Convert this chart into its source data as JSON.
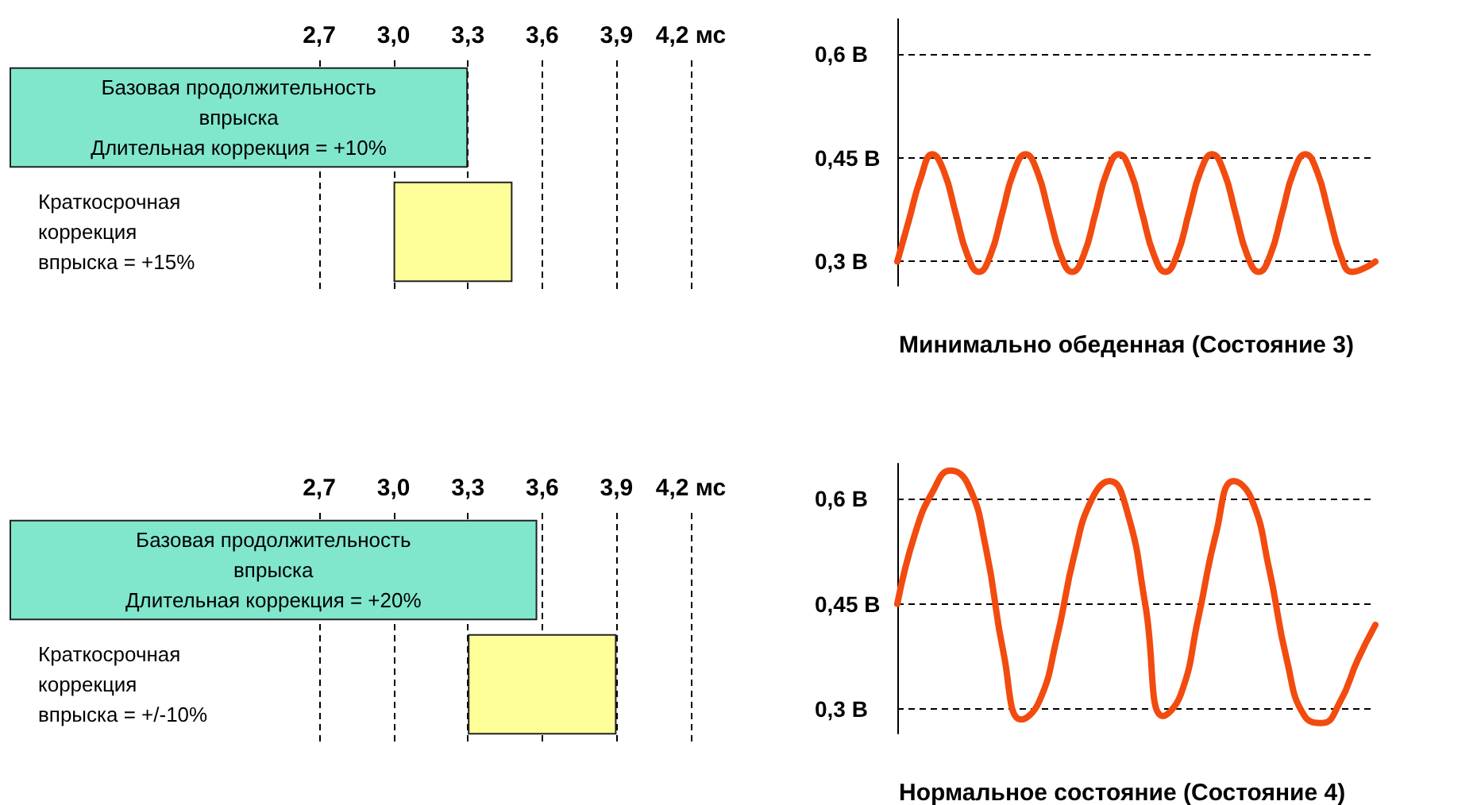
{
  "chart_data": [
    {
      "type": "bar",
      "orientation": "horizontal",
      "categories": [
        "Базовая продолжительность\nвпрыска\nДлительная коррекция = +10%",
        "Краткосрочная\nкоррекция\nвпрыска = +15%"
      ],
      "base": [
        1.45,
        3.0
      ],
      "values": [
        1.85,
        0.48
      ],
      "colors": [
        "#80e6cc",
        "#ffff99"
      ],
      "xlim": [
        1.45,
        4.2
      ],
      "xticks": [
        {
          "value": 2.7,
          "label": "2,7"
        },
        {
          "value": 3.0,
          "label": "3,0"
        },
        {
          "value": 3.3,
          "label": "3,3"
        },
        {
          "value": 3.6,
          "label": "3,6"
        },
        {
          "value": 3.9,
          "label": "3,9"
        },
        {
          "value": 4.2,
          "label": "4,2 мс"
        }
      ],
      "grid": "x",
      "tick_labels": "x"
    },
    {
      "type": "line",
      "categories": [
        null,
        null,
        null,
        null,
        null,
        null,
        null,
        null,
        null,
        null,
        null,
        null,
        null,
        null,
        null,
        null,
        null,
        null,
        null,
        null,
        null,
        null,
        null,
        null,
        null,
        null,
        null,
        null,
        null,
        null,
        null,
        null,
        null,
        null,
        null,
        null,
        null,
        null,
        null,
        null,
        null,
        null
      ],
      "series": [
        {
          "color": "#f24b0f",
          "values": [
            0.3,
            0.36,
            0.42,
            0.455,
            0.43,
            0.37,
            0.31,
            0.285,
            0.31,
            0.37,
            0.43,
            0.455,
            0.43,
            0.37,
            0.31,
            0.285,
            0.31,
            0.37,
            0.43,
            0.455,
            0.43,
            0.37,
            0.31,
            0.285,
            0.31,
            0.37,
            0.43,
            0.455,
            0.43,
            0.37,
            0.31,
            0.285,
            0.31,
            0.37,
            0.43,
            0.455,
            0.43,
            0.37,
            0.31,
            0.285,
            0.29,
            0.3
          ]
        }
      ],
      "ylim": [
        0.265,
        0.65
      ],
      "yticks": [
        {
          "value": 0.3,
          "label": "0,3 В"
        },
        {
          "value": 0.45,
          "label": "0,45 В"
        },
        {
          "value": 0.6,
          "label": "0,6 В"
        }
      ],
      "grid": "y",
      "xlabel": "Минимально обеденная (Состояние 3)",
      "tick_labels": "y",
      "marker": "none"
    },
    {
      "type": "bar",
      "orientation": "horizontal",
      "categories": [
        "Базовая продолжительность\nвпрыска\nДлительная коррекция = +20%",
        "Краткосрочная\nкоррекция\nвпрыска = +/-10%"
      ],
      "base": [
        1.45,
        3.3
      ],
      "values": [
        2.13,
        0.6
      ],
      "colors": [
        "#80e6cc",
        "#ffff99"
      ],
      "xlim": [
        1.45,
        4.2
      ],
      "xticks": [
        {
          "value": 2.7,
          "label": "2,7"
        },
        {
          "value": 3.0,
          "label": "3,0"
        },
        {
          "value": 3.3,
          "label": "3,3"
        },
        {
          "value": 3.6,
          "label": "3,6"
        },
        {
          "value": 3.9,
          "label": "3,9"
        },
        {
          "value": 4.2,
          "label": "4,2 мс"
        }
      ],
      "grid": "x",
      "tick_labels": "x"
    },
    {
      "type": "line",
      "categories": [
        null,
        null,
        null,
        null,
        null,
        null,
        null,
        null,
        null,
        null,
        null,
        null,
        null,
        null,
        null,
        null,
        null,
        null,
        null,
        null,
        null,
        null,
        null,
        null,
        null,
        null,
        null,
        null
      ],
      "series": [
        {
          "color": "#f24b0f",
          "values": [
            0.45,
            0.55,
            0.61,
            0.64,
            0.62,
            0.53,
            0.38,
            0.285,
            0.31,
            0.4,
            0.52,
            0.6,
            0.625,
            0.58,
            0.45,
            0.29,
            0.32,
            0.43,
            0.55,
            0.625,
            0.6,
            0.5,
            0.37,
            0.29,
            0.28,
            0.31,
            0.37,
            0.42
          ]
        }
      ],
      "ylim": [
        0.265,
        0.65
      ],
      "yticks": [
        {
          "value": 0.3,
          "label": "0,3 В"
        },
        {
          "value": 0.45,
          "label": "0,45 В"
        },
        {
          "value": 0.6,
          "label": "0,6 В"
        }
      ],
      "grid": "y",
      "xlabel": "Нормальное состояние (Состояние 4)",
      "tick_labels": "y",
      "marker": "none"
    }
  ]
}
